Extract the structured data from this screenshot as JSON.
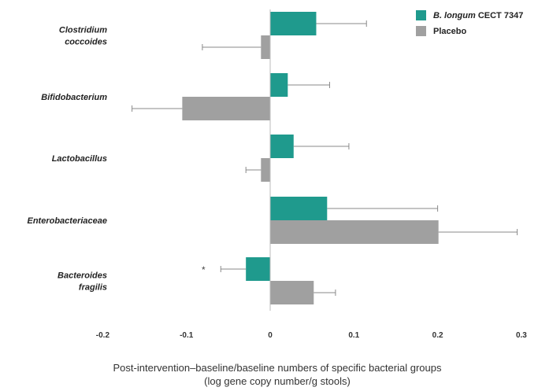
{
  "chart_data": {
    "type": "bar",
    "orientation": "horizontal",
    "categories": [
      [
        "Clostridium",
        "coccoides"
      ],
      [
        "Bifidobacterium"
      ],
      [
        "Lactobacillus"
      ],
      [
        "Enterobacteriaceae"
      ],
      [
        "Bacteroides",
        "fragilis"
      ]
    ],
    "series": [
      {
        "name_italic": "B. longum",
        "name_rest": " CECT 7347",
        "color": "#1f9a8d",
        "values": [
          0.055,
          0.021,
          0.028,
          0.068,
          -0.029
        ],
        "errors": [
          0.06,
          0.05,
          0.066,
          0.132,
          0.03
        ]
      },
      {
        "name": "Placebo",
        "color": "#a0a0a0",
        "values": [
          -0.011,
          -0.105,
          -0.011,
          0.201,
          0.052
        ],
        "errors": [
          0.07,
          0.06,
          0.018,
          0.094,
          0.026
        ]
      }
    ],
    "annotations": [
      {
        "text": "*",
        "category_index": 4
      }
    ],
    "xlim": [
      -0.2,
      0.3
    ],
    "xticks": [
      -0.2,
      -0.1,
      0,
      0.1,
      0.2,
      0.3
    ],
    "tick_labels": [
      "-0.2",
      "-0.1",
      "0",
      "0.1",
      "0.2",
      "0.3"
    ],
    "xlabel_line1": "Post-intervention–baseline/baseline numbers of specific bacterial groups",
    "xlabel_line2": "(log gene copy number/g stools)",
    "legend_position": "top-right",
    "grid": false
  }
}
